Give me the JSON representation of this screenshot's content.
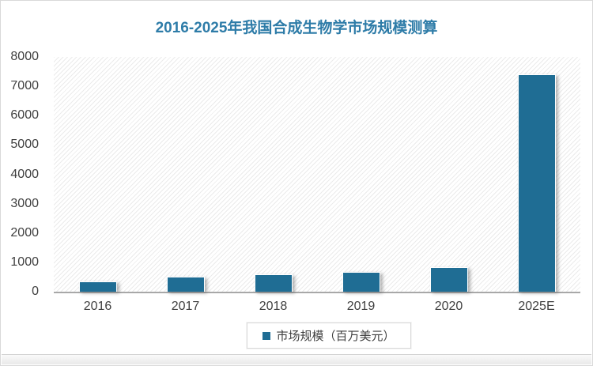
{
  "chart_data": {
    "type": "bar",
    "title": "2016-2025年我国合成生物学市场规模测算",
    "categories": [
      "2016",
      "2017",
      "2018",
      "2019",
      "2020",
      "2025E"
    ],
    "series": [
      {
        "name": "市场规模（百万美元）",
        "values": [
          350,
          500,
          600,
          670,
          830,
          7400
        ]
      }
    ],
    "xlabel": "",
    "ylabel": "",
    "ylim": [
      0,
      8000
    ],
    "ytick_step": 1000,
    "ytick_labels": [
      "0",
      "1000",
      "2000",
      "3000",
      "4000",
      "5000",
      "6000",
      "7000",
      "8000"
    ],
    "grid": false,
    "legend_position": "bottom",
    "plot_background": "diagonal-hatch",
    "colors": {
      "bar": "#1f6d94",
      "title": "#2e7ca8",
      "axis_line": "#a8a8a8",
      "text": "#3f3f3f"
    }
  }
}
